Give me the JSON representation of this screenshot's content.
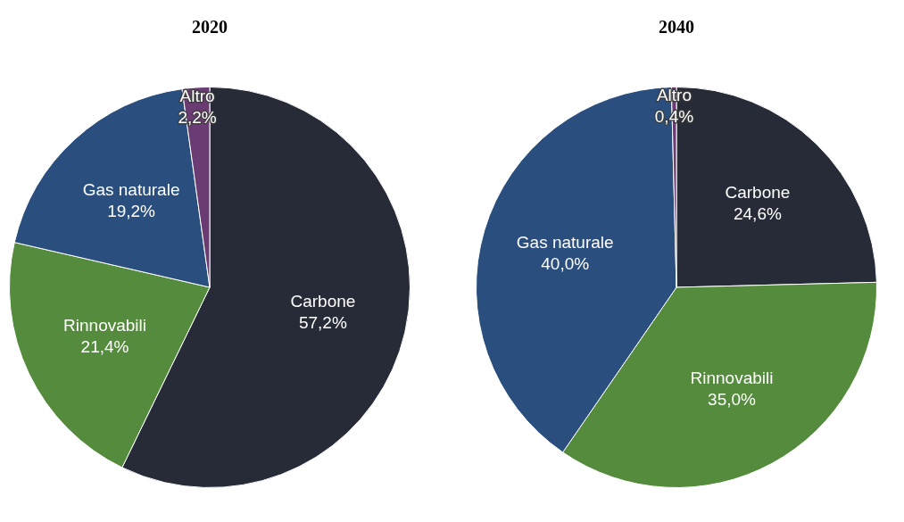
{
  "chart_data": [
    {
      "type": "pie",
      "title": "2020",
      "categories": [
        "Carbone",
        "Rinnovabili",
        "Gas naturale",
        "Altro"
      ],
      "values": [
        57.2,
        21.4,
        19.2,
        2.2
      ],
      "value_labels": [
        "57,2%",
        "21,4%",
        "19,2%",
        "2,2%"
      ],
      "colors": [
        "#272b38",
        "#548b3c",
        "#2a4f7e",
        "#6a3c73"
      ],
      "data_labels": true
    },
    {
      "type": "pie",
      "title": "2040",
      "categories": [
        "Carbone",
        "Rinnovabili",
        "Gas naturale",
        "Altro"
      ],
      "values": [
        24.6,
        35.0,
        40.0,
        0.4
      ],
      "value_labels": [
        "24,6%",
        "35,0%",
        "40,0%",
        "0,4%"
      ],
      "colors": [
        "#272b38",
        "#548b3c",
        "#2a4f7e",
        "#6a3c73"
      ],
      "data_labels": true
    }
  ]
}
